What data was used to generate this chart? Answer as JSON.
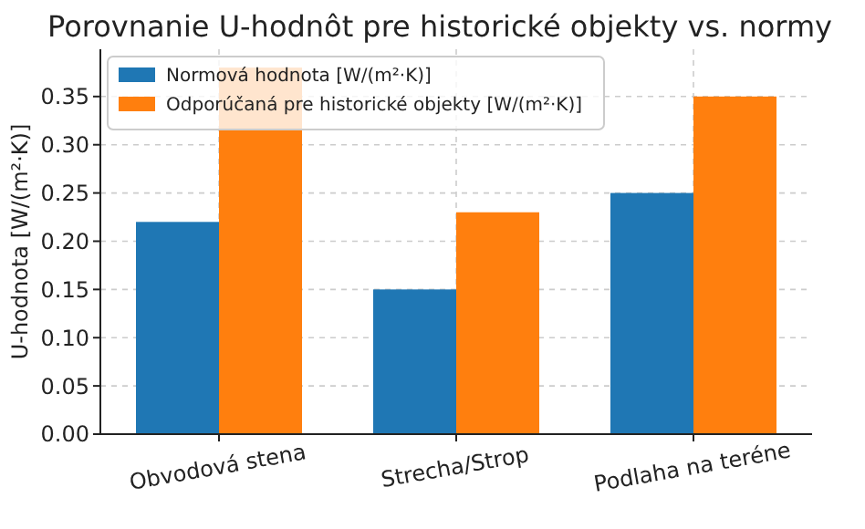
{
  "chart_data": {
    "type": "bar",
    "title": "Porovnanie U-hodnôt pre historické objekty vs. normy",
    "ylabel": "U-hodnota [W/(m²·K)]",
    "categories": [
      "Obvodová stena",
      "Strecha/Strop",
      "Podlaha na teréne"
    ],
    "series": [
      {
        "name": "Normová hodnota [W/(m²·K)]",
        "color": "#1f77b4",
        "values": [
          0.22,
          0.15,
          0.25
        ]
      },
      {
        "name": "Odporúčaná pre historické objekty [W/(m²·K)]",
        "color": "#ff7f0e",
        "values": [
          0.38,
          0.23,
          0.35
        ]
      }
    ],
    "ylim": [
      0,
      0.399
    ],
    "yticks": [
      {
        "value": 0,
        "label": "0.00"
      },
      {
        "value": 0.05,
        "label": "0.05"
      },
      {
        "value": 0.1,
        "label": "0.10"
      },
      {
        "value": 0.15,
        "label": "0.15"
      },
      {
        "value": 0.2,
        "label": "0.20"
      },
      {
        "value": 0.25,
        "label": "0.25"
      },
      {
        "value": 0.3,
        "label": "0.30"
      },
      {
        "value": 0.35,
        "label": "0.35"
      }
    ],
    "grid": true,
    "legend": "top left"
  }
}
